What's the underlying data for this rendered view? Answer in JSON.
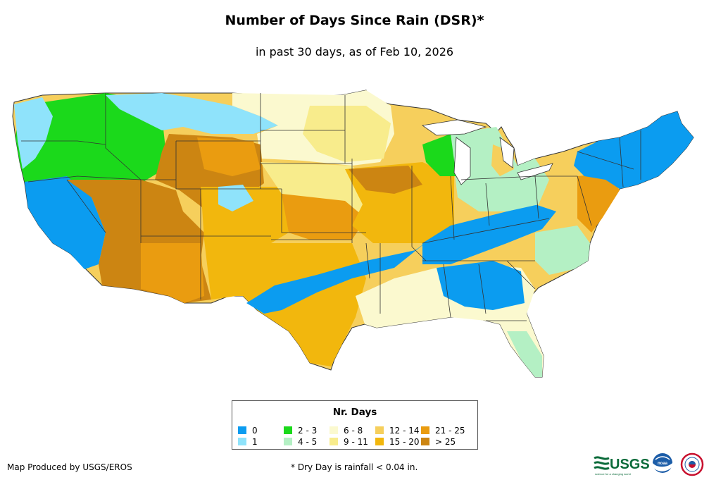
{
  "title": "Number of Days Since Rain (DSR)*",
  "subtitle": "in past 30 days, as of Feb 10, 2026",
  "legend": {
    "title": "Nr. Days",
    "items": [
      {
        "label": "0",
        "color": "#0b9cf0"
      },
      {
        "label": "1",
        "color": "#8fe3fb"
      },
      {
        "label": "2 - 3",
        "color": "#1bd91b"
      },
      {
        "label": "4 - 5",
        "color": "#b4f0c4"
      },
      {
        "label": "6 - 8",
        "color": "#fbf9cf"
      },
      {
        "label": "9 - 11",
        "color": "#f8ec8c"
      },
      {
        "label": "12 - 14",
        "color": "#f6cf5c"
      },
      {
        "label": "15 - 20",
        "color": "#f2b70d"
      },
      {
        "label": "21 - 25",
        "color": "#ea9c10"
      },
      {
        "label": "> 25",
        "color": "#cc8512"
      }
    ]
  },
  "credit": "Map Produced by USGS/EROS",
  "footnote": "* Dry Day is rainfall < 0.04 in.",
  "logos": {
    "usgs": "USGS",
    "usgs_tagline": "science for a changing world",
    "noaa": "noaa",
    "nws_icon": "nws-logo-icon"
  }
}
